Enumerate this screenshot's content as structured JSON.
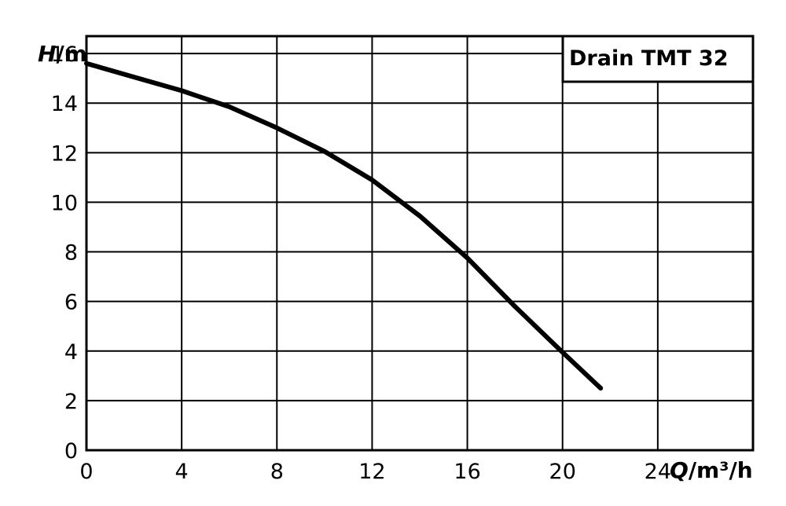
{
  "chart_data": {
    "type": "line",
    "title": "Drain TMT 32",
    "xlabel_var": "Q",
    "xlabel_unit": "/m³/h",
    "ylabel_var": "H",
    "ylabel_unit": "/m",
    "xlim": [
      0,
      28
    ],
    "ylim": [
      0,
      16.7
    ],
    "x_ticks": [
      "0",
      "4",
      "8",
      "12",
      "16",
      "20",
      "24"
    ],
    "y_ticks": [
      "0",
      "2",
      "4",
      "6",
      "8",
      "10",
      "12",
      "14",
      "16"
    ],
    "grid": true,
    "series": [
      {
        "color": "#000000",
        "x": [
          0,
          2,
          4,
          6,
          8,
          10,
          12,
          14,
          16,
          18,
          20,
          21.6
        ],
        "y": [
          15.6,
          15.05,
          14.5,
          13.85,
          13.0,
          12.05,
          10.9,
          9.45,
          7.75,
          5.8,
          3.95,
          2.5
        ]
      }
    ]
  }
}
